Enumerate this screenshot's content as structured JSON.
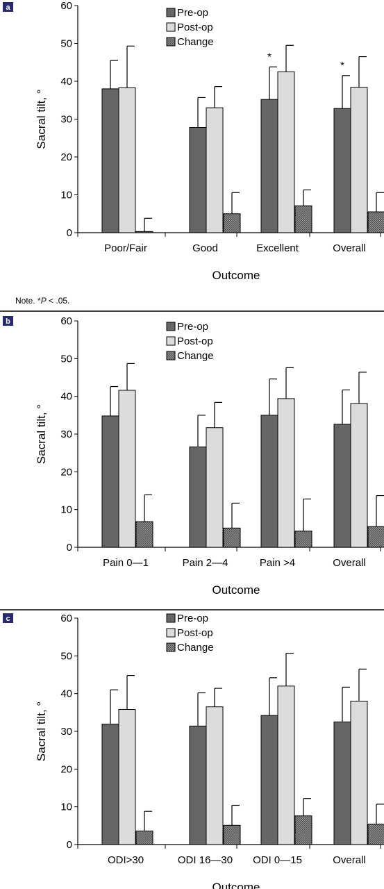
{
  "colors": {
    "pre": "#666666",
    "post": "#dcdcdc",
    "change_hatch": "#555555",
    "panel_tag": "#262a6b"
  },
  "note": {
    "prefix": "Note. ",
    "mark": "*",
    "italic": "P",
    "suffix": " < .05."
  },
  "chart_data": [
    {
      "type": "bar",
      "panel": "a",
      "ylabel": "Sacral tilt, °",
      "xlabel": "Outcome",
      "ylim": [
        0,
        60
      ],
      "yticks": [
        "0",
        "10",
        "20",
        "30",
        "40",
        "50",
        "60"
      ],
      "categories": [
        "Poor/Fair",
        "Good",
        "Excellent",
        "Overall"
      ],
      "legend": {
        "position": "top-center"
      },
      "series": [
        {
          "name": "Pre-op",
          "values": [
            38,
            27.8,
            35.2,
            32.8
          ],
          "error": [
            7.5,
            7.9,
            8.6,
            8.7
          ]
        },
        {
          "name": "Post-op",
          "values": [
            38.3,
            33,
            42.5,
            38.4
          ],
          "error": [
            11,
            5.6,
            7,
            8.1
          ]
        },
        {
          "name": "Change",
          "values": [
            0.3,
            5,
            7.1,
            5.5
          ],
          "error": [
            3.5,
            5.6,
            4.2,
            5.1
          ]
        }
      ],
      "annotations": [
        {
          "category": "Excellent",
          "text": "*"
        },
        {
          "category": "Overall",
          "text": "*"
        }
      ]
    },
    {
      "type": "bar",
      "panel": "b",
      "ylabel": "Sacral tilt, °",
      "xlabel": "Outcome",
      "ylim": [
        0,
        60
      ],
      "yticks": [
        "0",
        "10",
        "20",
        "30",
        "40",
        "50",
        "60"
      ],
      "categories": [
        "Pain 0—1",
        "Pain 2—4",
        "Pain >4",
        "Overall"
      ],
      "legend": {
        "position": "top-center"
      },
      "series": [
        {
          "name": "Pre-op",
          "values": [
            34.8,
            26.6,
            35,
            32.6
          ],
          "error": [
            7.8,
            8.4,
            9.6,
            9.1
          ]
        },
        {
          "name": "Post-op",
          "values": [
            41.6,
            31.7,
            39.4,
            38.1
          ],
          "error": [
            7.1,
            6.7,
            8.2,
            8.3
          ]
        },
        {
          "name": "Change",
          "values": [
            6.8,
            5.1,
            4.3,
            5.5
          ],
          "error": [
            7.1,
            6.6,
            8.5,
            8.2
          ]
        }
      ],
      "annotations": []
    },
    {
      "type": "bar",
      "panel": "c",
      "ylabel": "Sacral tilt, °",
      "xlabel": "Outcome",
      "ylim": [
        0,
        60
      ],
      "yticks": [
        "0",
        "10",
        "20",
        "30",
        "40",
        "50",
        "60"
      ],
      "categories": [
        "ODI>30",
        "ODI 16—30",
        "ODI 0—15",
        "Overall"
      ],
      "legend": {
        "position": "top-center"
      },
      "series": [
        {
          "name": "Pre-op",
          "values": [
            31.9,
            31.4,
            34.2,
            32.5
          ],
          "error": [
            9.1,
            8.8,
            10,
            9.2
          ]
        },
        {
          "name": "Post-op",
          "values": [
            35.8,
            36.5,
            42,
            38
          ],
          "error": [
            9,
            4.9,
            8.7,
            8.5
          ]
        },
        {
          "name": "Change",
          "values": [
            3.6,
            5.1,
            7.6,
            5.4
          ],
          "error": [
            5.2,
            5.3,
            4.6,
            5.3
          ]
        }
      ],
      "annotations": []
    }
  ]
}
